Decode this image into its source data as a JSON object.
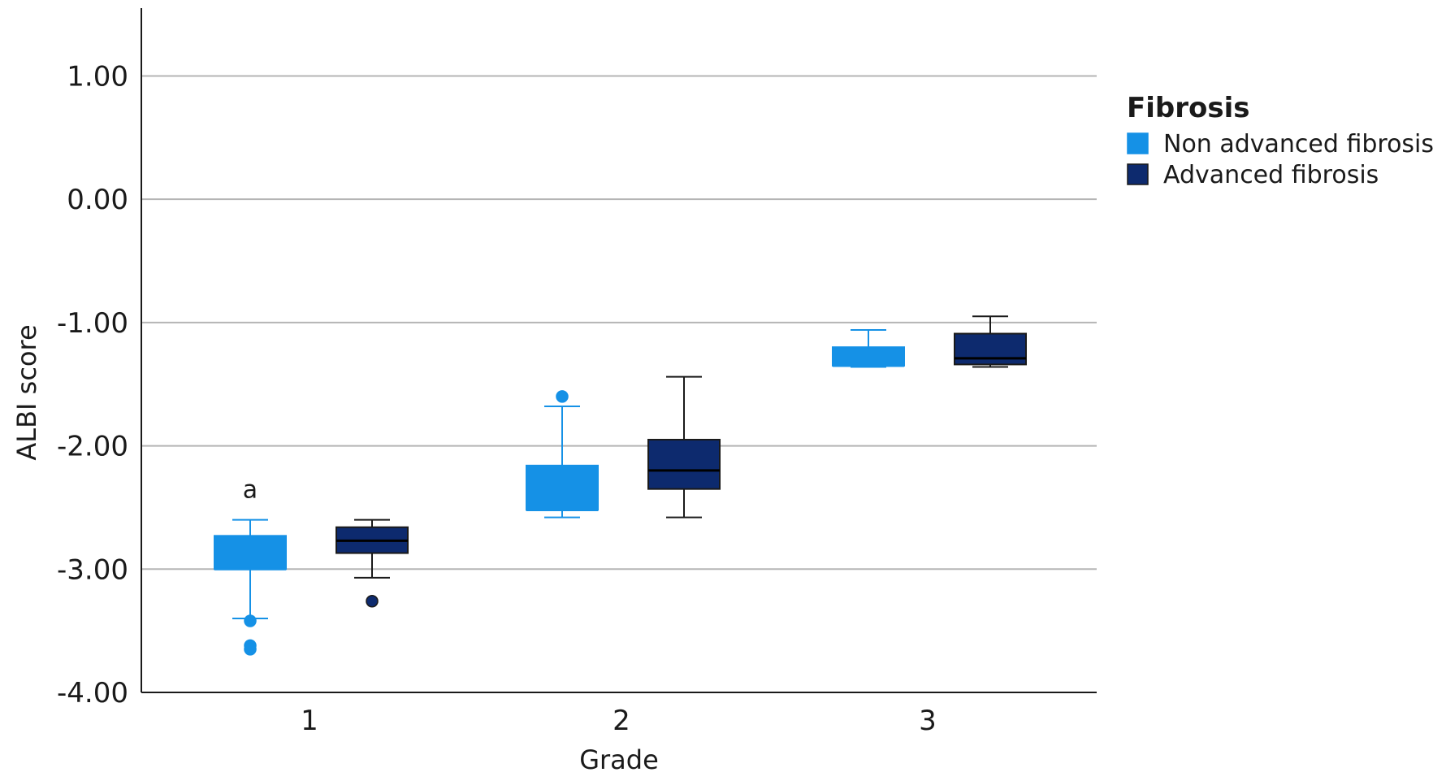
{
  "chart_data": {
    "type": "box",
    "title": "",
    "xlabel": "Grade",
    "ylabel": "ALBI score",
    "categories": [
      "1",
      "2",
      "3"
    ],
    "ylim": [
      -4.0,
      1.55
    ],
    "yticks": [
      1.0,
      0.0,
      -1.0,
      -2.0,
      -3.0,
      -4.0
    ],
    "ytick_labels": [
      "1.00",
      "0.00",
      "-1.00",
      "-2.00",
      "-3.00",
      "-4.00"
    ],
    "grid": true,
    "legend": {
      "title": "Fibrosis",
      "placement": "right"
    },
    "series": [
      {
        "name": "Non advanced fibrosis",
        "color": "#1591e6",
        "median_color": "#1591e6",
        "boxes": [
          {
            "category": "1",
            "whisker_low": -3.4,
            "q1": -3.0,
            "median": -3.0,
            "q3": -2.73,
            "whisker_high": -2.6,
            "outliers": [
              -3.42,
              -3.62,
              -3.65
            ]
          },
          {
            "category": "2",
            "whisker_low": -2.58,
            "q1": -2.52,
            "median": -2.52,
            "q3": -2.16,
            "whisker_high": -1.68,
            "outliers": [
              -1.6
            ]
          },
          {
            "category": "3",
            "whisker_low": -1.36,
            "q1": -1.35,
            "median": -1.35,
            "q3": -1.2,
            "whisker_high": -1.06,
            "outliers": []
          }
        ]
      },
      {
        "name": "Advanced fibrosis",
        "color": "#0d2a6e",
        "median_color": "#000000",
        "boxes": [
          {
            "category": "1",
            "whisker_low": -3.07,
            "q1": -2.87,
            "median": -2.77,
            "q3": -2.66,
            "whisker_high": -2.6,
            "outliers": [
              -3.26
            ]
          },
          {
            "category": "2",
            "whisker_low": -2.58,
            "q1": -2.35,
            "median": -2.2,
            "q3": -1.95,
            "whisker_high": -1.44,
            "outliers": []
          },
          {
            "category": "3",
            "whisker_low": -1.36,
            "q1": -1.34,
            "median": -1.29,
            "q3": -1.09,
            "whisker_high": -0.95,
            "outliers": []
          }
        ]
      }
    ],
    "annotations": [
      {
        "text": "a",
        "category": "1",
        "series": "Non advanced fibrosis",
        "y": -2.42
      }
    ]
  }
}
